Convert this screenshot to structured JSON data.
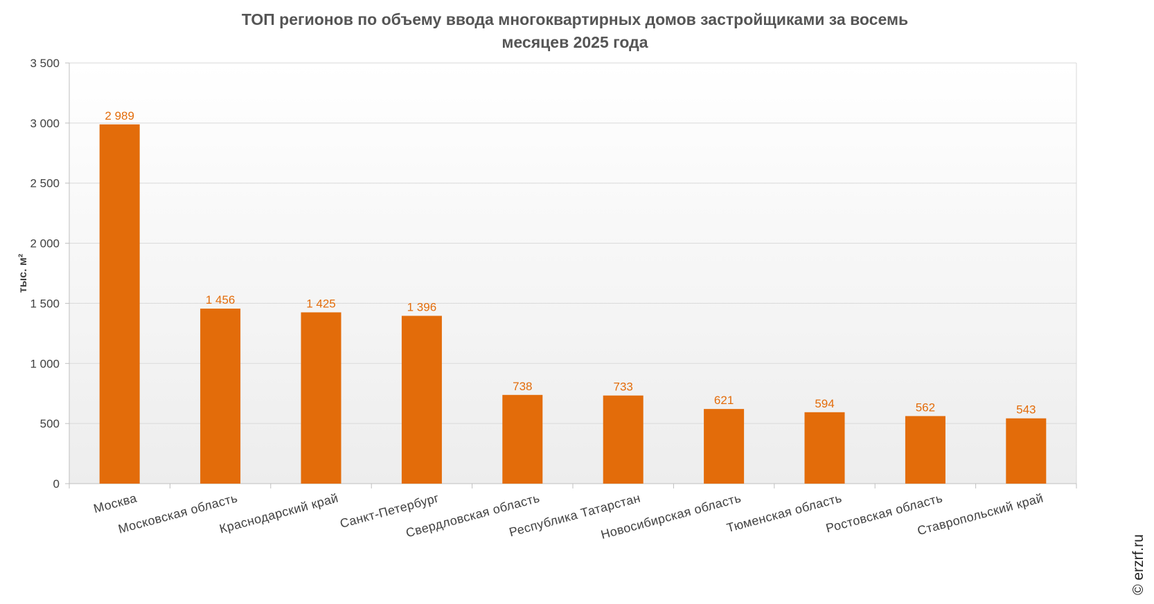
{
  "title_lines": [
    "ТОП регионов по объему ввода многоквартирных домов застройщиками за восемь",
    "месяцев 2025 года"
  ],
  "credit": "© erzrf.ru",
  "colors": {
    "bar": "#E36C0A",
    "label": "#E36C0A",
    "plot_bg_top": "#FFFFFF",
    "plot_bg_bottom": "#EDEDED",
    "grid": "#D9D9D9",
    "axis": "#BFBFBF"
  },
  "chart_data": {
    "type": "bar",
    "title": "ТОП регионов по объему ввода многоквартирных домов застройщиками за восемь месяцев 2025 года",
    "ylabel": "тыс. м²",
    "xlabel": "",
    "ylim": [
      0,
      3500
    ],
    "yticks": [
      0,
      500,
      1000,
      1500,
      2000,
      2500,
      3000,
      3500
    ],
    "ytick_labels": [
      "0",
      "500",
      "1 000",
      "1 500",
      "2 000",
      "2 500",
      "3 000",
      "3 500"
    ],
    "categories": [
      "Москва",
      "Московская область",
      "Краснодарский край",
      "Санкт-Петербург",
      "Свердловская область",
      "Республика Татарстан",
      "Новосибирская область",
      "Тюменская область",
      "Ростовская область",
      "Ставропольский край"
    ],
    "values": [
      2989,
      1456,
      1425,
      1396,
      738,
      733,
      621,
      594,
      562,
      543
    ],
    "value_labels": [
      "2 989",
      "1 456",
      "1 425",
      "1 396",
      "738",
      "733",
      "621",
      "594",
      "562",
      "543"
    ],
    "grid": true,
    "legend": "none"
  }
}
